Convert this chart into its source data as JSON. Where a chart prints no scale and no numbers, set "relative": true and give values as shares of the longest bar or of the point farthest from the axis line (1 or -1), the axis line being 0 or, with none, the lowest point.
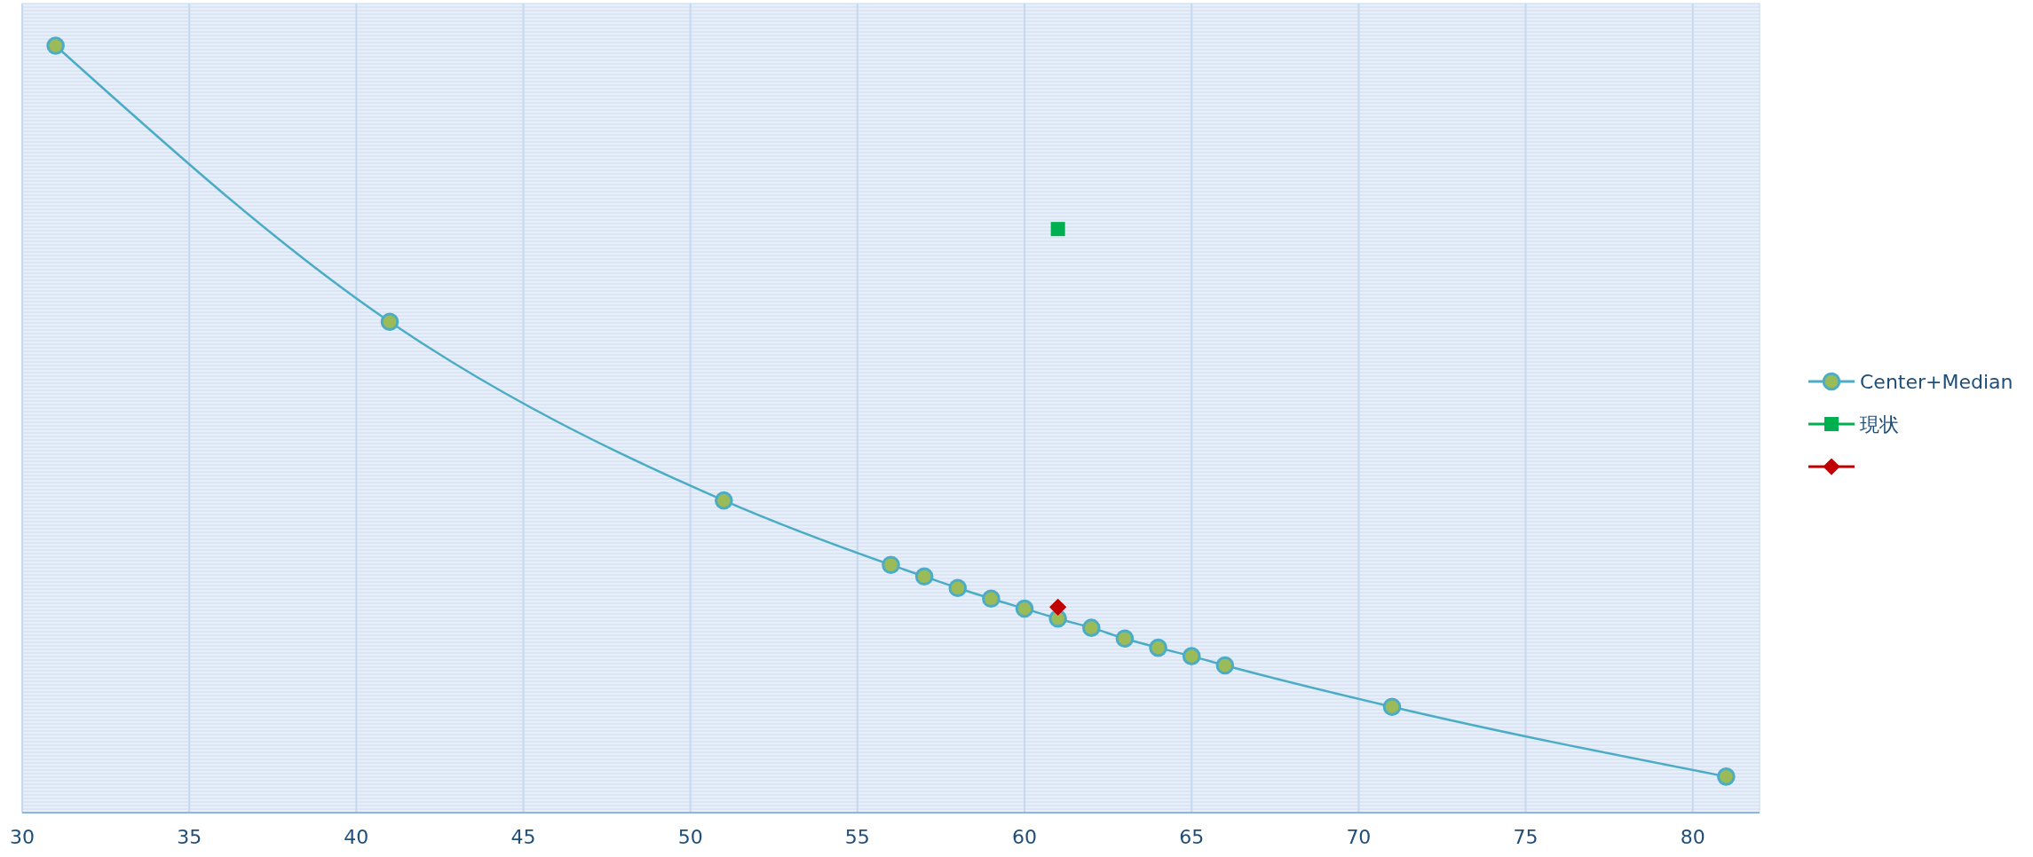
{
  "chart_data": {
    "type": "line",
    "relative": true,
    "x": [
      31,
      41,
      51,
      56,
      57,
      58,
      59,
      60,
      61,
      62,
      63,
      64,
      65,
      66,
      71,
      81
    ],
    "xlim": [
      30,
      82
    ],
    "xticks": [
      30,
      35,
      40,
      45,
      50,
      55,
      60,
      65,
      70,
      75,
      80
    ],
    "grid": "x",
    "legend": "right",
    "marker": "circle",
    "series": [
      {
        "name": "Center+Median",
        "color": "#4bacc6",
        "values": [
          1.0,
          0.64,
          0.407,
          0.323,
          0.308,
          0.293,
          0.279,
          0.266,
          0.253,
          0.241,
          0.227,
          0.215,
          0.204,
          0.192,
          0.138,
          0.047
        ]
      },
      {
        "name": "現状",
        "color": "#00b050",
        "type": "scatter",
        "marker": "square",
        "x": [
          61
        ],
        "values": [
          0.761
        ]
      },
      {
        "color": "#c00000",
        "type": "scatter",
        "marker": "diamond",
        "x": [
          61
        ],
        "values": [
          0.268
        ]
      }
    ]
  }
}
